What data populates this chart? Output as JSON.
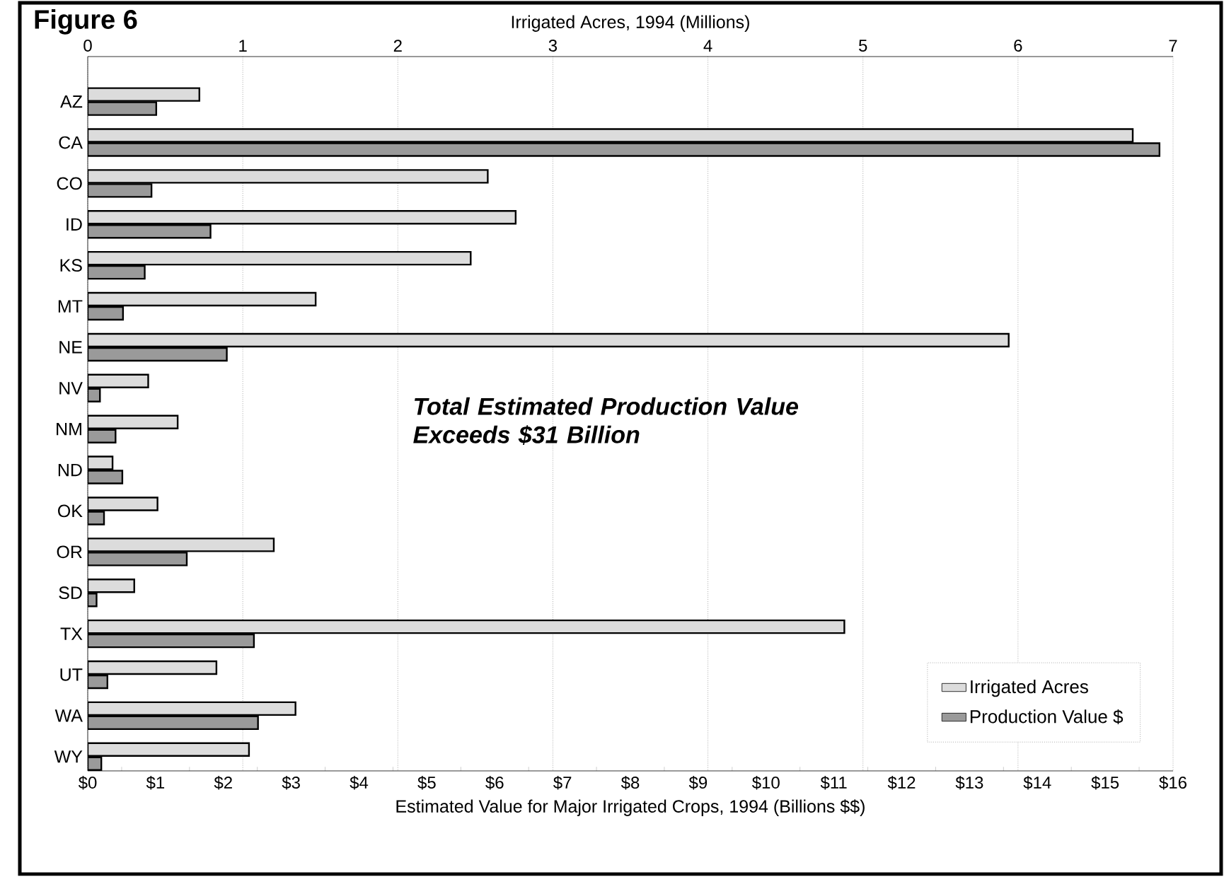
{
  "chart_data": {
    "type": "bar",
    "orientation": "horizontal",
    "title": "Figure 6",
    "x2label": "Irrigated Acres, 1994 (Millions)",
    "xlabel": "Estimated Value for Major Irrigated Crops, 1994 (Billions $$)",
    "categories": [
      "AZ",
      "CA",
      "CO",
      "ID",
      "KS",
      "MT",
      "NE",
      "NV",
      "NM",
      "ND",
      "OK",
      "OR",
      "SD",
      "TX",
      "UT",
      "WA",
      "WY"
    ],
    "series": [
      {
        "name": "Irrigated Acres",
        "color": "#dcdcdc",
        "axis": "x2",
        "values": [
          0.72,
          6.74,
          2.58,
          2.76,
          2.47,
          1.47,
          5.94,
          0.39,
          0.58,
          0.16,
          0.45,
          1.2,
          0.3,
          4.88,
          0.83,
          1.34,
          1.04
        ]
      },
      {
        "name": "Production Value $",
        "color": "#9a9a9a",
        "values": [
          1.01,
          15.8,
          0.94,
          1.81,
          0.84,
          0.52,
          2.05,
          0.18,
          0.41,
          0.51,
          0.24,
          1.46,
          0.13,
          2.45,
          0.29,
          2.51,
          0.2
        ]
      }
    ],
    "xlim": [
      0,
      16
    ],
    "xticks": [
      {
        "value": 0,
        "label": "$0"
      },
      {
        "value": 1,
        "label": "$1"
      },
      {
        "value": 2,
        "label": "$2"
      },
      {
        "value": 3,
        "label": "$3"
      },
      {
        "value": 4,
        "label": "$4"
      },
      {
        "value": 5,
        "label": "$5"
      },
      {
        "value": 6,
        "label": "$6"
      },
      {
        "value": 7,
        "label": "$7"
      },
      {
        "value": 8,
        "label": "$8"
      },
      {
        "value": 9,
        "label": "$9"
      },
      {
        "value": 10,
        "label": "$10"
      },
      {
        "value": 11,
        "label": "$11"
      },
      {
        "value": 12,
        "label": "$12"
      },
      {
        "value": 13,
        "label": "$13"
      },
      {
        "value": 14,
        "label": "$14"
      },
      {
        "value": 15,
        "label": "$15"
      },
      {
        "value": 16,
        "label": "$16"
      }
    ],
    "x2lim": [
      0,
      7
    ],
    "x2ticks": [
      0,
      1,
      2,
      3,
      4,
      5,
      6,
      7
    ],
    "grid": "x",
    "legend": "bottom right",
    "annotations": [
      "Total Estimated Production Value Exceeds  $31 Billion"
    ]
  }
}
